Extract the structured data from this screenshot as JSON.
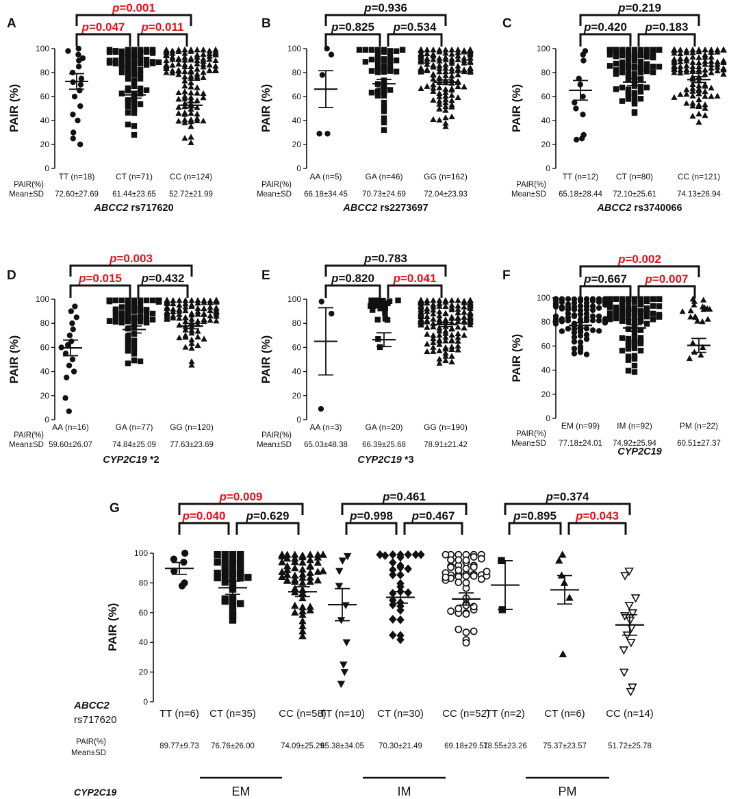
{
  "chart_data": [
    {
      "type": "scatter",
      "panel": "A",
      "ylabel": "PAIR (%)",
      "ylim": [
        0,
        100
      ],
      "yticks": [
        0,
        20,
        40,
        60,
        80,
        100
      ],
      "categories": [
        "TT (n=18)",
        "CT (n=71)",
        "CC (n=124)"
      ],
      "markers": [
        "circle",
        "square",
        "triangle"
      ],
      "stat_row_label": [
        "PAIR(%)",
        "Mean±SD"
      ],
      "stats": [
        "72.60±27.69",
        "61.44±23.65",
        "52.72±21.99"
      ],
      "means": [
        72.6,
        61.44,
        52.72
      ],
      "sems": [
        6.5,
        2.8,
        2.0
      ],
      "gene": "ABCC2",
      "variant": " rs717620",
      "comparisons": [
        {
          "from": 0,
          "to": 1,
          "p": "=0.047",
          "significant": true
        },
        {
          "from": 1,
          "to": 2,
          "p": "=0.011",
          "significant": true
        },
        {
          "from": 0,
          "to": 2,
          "p": "=0.001",
          "significant": true
        }
      ],
      "points": [
        [
          100,
          98,
          95,
          92,
          90,
          85,
          80,
          75,
          72,
          70,
          65,
          60,
          52,
          45,
          40,
          30,
          25,
          20
        ],
        [],
        []
      ]
    },
    {
      "type": "scatter",
      "panel": "B",
      "ylabel": "PAIR (%)",
      "ylim": [
        0,
        100
      ],
      "yticks": [
        0,
        20,
        40,
        60,
        80,
        100
      ],
      "categories": [
        "AA (n=5)",
        "GA (n=46)",
        "GG (n=162)"
      ],
      "markers": [
        "circle",
        "square",
        "triangle"
      ],
      "stat_row_label": [
        "PAIR(%)",
        "Mean±SD"
      ],
      "stats": [
        "66.18±34.45",
        "70.73±24.69",
        "72.04±23.93"
      ],
      "means": [
        66.18,
        70.73,
        72.04
      ],
      "sems": [
        15.4,
        3.6,
        1.9
      ],
      "gene": "ABCC2",
      "variant": " rs2273697",
      "comparisons": [
        {
          "from": 0,
          "to": 1,
          "p": "=0.825",
          "significant": false
        },
        {
          "from": 1,
          "to": 2,
          "p": "=0.534",
          "significant": false
        },
        {
          "from": 0,
          "to": 2,
          "p": "=0.936",
          "significant": false
        }
      ],
      "points": [
        [
          100,
          95,
          78,
          29,
          29
        ],
        [],
        []
      ]
    },
    {
      "type": "scatter",
      "panel": "C",
      "ylabel": "PAIR (%)",
      "ylim": [
        0,
        100
      ],
      "yticks": [
        0,
        20,
        40,
        60,
        80,
        100
      ],
      "categories": [
        "TT (n=12)",
        "CT (n=80)",
        "CC (n=121)"
      ],
      "markers": [
        "circle",
        "square",
        "triangle"
      ],
      "stat_row_label": [
        "PAIR(%)",
        "Mean±SD"
      ],
      "stats": [
        "65.18±28.44",
        "72.10±25.61",
        "74.13±26.94"
      ],
      "means": [
        65.18,
        72.1,
        74.13
      ],
      "sems": [
        8.2,
        2.9,
        2.4
      ],
      "gene": "ABCC2",
      "variant": " rs3740066",
      "comparisons": [
        {
          "from": 0,
          "to": 1,
          "p": "=0.420",
          "significant": false
        },
        {
          "from": 1,
          "to": 2,
          "p": "=0.183",
          "significant": false
        },
        {
          "from": 0,
          "to": 2,
          "p": "=0.219",
          "significant": false
        }
      ],
      "points": [
        [
          98,
          95,
          90,
          75,
          70,
          60,
          55,
          50,
          45,
          28,
          25,
          24
        ],
        [],
        []
      ]
    },
    {
      "type": "scatter",
      "panel": "D",
      "ylabel": "PAIR (%)",
      "ylim": [
        0,
        100
      ],
      "yticks": [
        0,
        20,
        40,
        60,
        80,
        100
      ],
      "categories": [
        "AA (n=16)",
        "GA (n=77)",
        "GG (n=120)"
      ],
      "markers": [
        "circle",
        "square",
        "triangle"
      ],
      "stat_row_label": [
        "PAIR(%)",
        "Mean±SD"
      ],
      "stats": [
        "59.60±26.07",
        "74.84±25.09",
        "77.63±23.69"
      ],
      "means": [
        59.6,
        74.84,
        77.63
      ],
      "sems": [
        6.5,
        2.9,
        2.2
      ],
      "gene": "CYP2C19",
      "variant": " *2",
      "comparisons": [
        {
          "from": 0,
          "to": 1,
          "p": "=0.015",
          "significant": true
        },
        {
          "from": 1,
          "to": 2,
          "p": "=0.432",
          "significant": false
        },
        {
          "from": 0,
          "to": 2,
          "p": "=0.003",
          "significant": true
        }
      ],
      "points": [
        [
          94,
          90,
          85,
          80,
          75,
          70,
          65,
          62,
          60,
          55,
          50,
          45,
          40,
          35,
          18,
          7
        ],
        [],
        []
      ]
    },
    {
      "type": "scatter",
      "panel": "E",
      "ylabel": "PAIR (%)",
      "ylim": [
        0,
        100
      ],
      "yticks": [
        0,
        20,
        40,
        60,
        80,
        100
      ],
      "categories": [
        "AA (n=3)",
        "GA (n=20)",
        "GG (n=190)"
      ],
      "markers": [
        "circle",
        "square",
        "triangle"
      ],
      "stat_row_label": [
        "PAIR(%)",
        "Mean±SD"
      ],
      "stats": [
        "65.03±48.38",
        "66.39±25.68",
        "78.91±21.42"
      ],
      "means": [
        65.03,
        66.39,
        78.91
      ],
      "sems": [
        27.9,
        5.7,
        1.6
      ],
      "gene": "CYP2C19",
      "variant": " *3",
      "comparisons": [
        {
          "from": 0,
          "to": 1,
          "p": "=0.820",
          "significant": false
        },
        {
          "from": 1,
          "to": 2,
          "p": "=0.041",
          "significant": true
        },
        {
          "from": 0,
          "to": 2,
          "p": "=0.783",
          "significant": false
        }
      ],
      "points": [
        [
          98,
          88,
          9
        ],
        [],
        []
      ]
    },
    {
      "type": "scatter",
      "panel": "F",
      "ylabel": "PAIR (%)",
      "ylim": [
        0,
        100
      ],
      "yticks": [
        0,
        20,
        40,
        60,
        80,
        100
      ],
      "categories": [
        "EM (n=99)",
        "IM (n=92)",
        "PM (n=22)"
      ],
      "markers": [
        "circle",
        "square",
        "triangle"
      ],
      "stat_row_label": [
        "PAIR(%)",
        "Mean±SD"
      ],
      "stats": [
        "77.18±24.01",
        "74.92±25.94",
        "60.51±27.37"
      ],
      "means": [
        77.18,
        74.92,
        60.51
      ],
      "sems": [
        2.4,
        2.7,
        5.8
      ],
      "gene": "CYP2C19",
      "variant": "",
      "comparisons": [
        {
          "from": 0,
          "to": 1,
          "p": "=0.667",
          "significant": false
        },
        {
          "from": 1,
          "to": 2,
          "p": "=0.007",
          "significant": true
        },
        {
          "from": 0,
          "to": 2,
          "p": "=0.002",
          "significant": true
        }
      ],
      "points": [
        [],
        [],
        []
      ]
    },
    {
      "type": "scatter",
      "panel": "G",
      "ylabel": "PAIR (%)",
      "ylim": [
        0,
        100
      ],
      "yticks": [
        0,
        20,
        40,
        60,
        80,
        100
      ],
      "row_label_gene": "ABCC2",
      "row_label_variant": "rs717620",
      "stat_row_label": [
        "PAIR(%)",
        "Mean±SD"
      ],
      "bottom_label": "CYP2C19",
      "categories": [
        "TT (n=6)",
        "CT (n=35)",
        "CC (n=58)",
        "TT (n=10)",
        "CT (n=30)",
        "CC (n=52)",
        "TT (n=2)",
        "CT (n=6)",
        "CC (n=14)"
      ],
      "markers": [
        "circle",
        "square",
        "triangle",
        "triangle-down",
        "diamond",
        "open-circle",
        "square",
        "triangle",
        "open-triangle-down"
      ],
      "stats": [
        "89.77±9.73",
        "76.76±26.00",
        "74.09±25.29",
        "65.38±34.05",
        "70.30±21.49",
        "69.18±29.51",
        "78.55±23.26",
        "75.37±23.57",
        "51.72±25.78"
      ],
      "means": [
        89.77,
        76.76,
        74.09,
        65.38,
        70.3,
        69.18,
        78.55,
        75.37,
        51.72
      ],
      "sems": [
        4.0,
        4.4,
        3.3,
        10.8,
        3.9,
        4.1,
        16.4,
        9.6,
        6.9
      ],
      "groups": [
        {
          "label": "EM",
          "from": 0,
          "to": 2
        },
        {
          "label": "IM",
          "from": 3,
          "to": 5
        },
        {
          "label": "PM",
          "from": 6,
          "to": 8
        }
      ],
      "comparisons": [
        {
          "from": 0,
          "to": 1,
          "p": "=0.040",
          "significant": true
        },
        {
          "from": 1,
          "to": 2,
          "p": "=0.629",
          "significant": false
        },
        {
          "from": 0,
          "to": 2,
          "p": "=0.009",
          "significant": true
        },
        {
          "from": 3,
          "to": 4,
          "p": "=0.998",
          "significant": false
        },
        {
          "from": 4,
          "to": 5,
          "p": "=0.467",
          "significant": false
        },
        {
          "from": 3,
          "to": 5,
          "p": "=0.461",
          "significant": false
        },
        {
          "from": 6,
          "to": 7,
          "p": "=0.895",
          "significant": false
        },
        {
          "from": 7,
          "to": 8,
          "p": "=0.043",
          "significant": true
        },
        {
          "from": 6,
          "to": 8,
          "p": "=0.374",
          "significant": false
        }
      ],
      "points": [
        [
          100,
          96,
          94,
          88,
          80,
          78
        ],
        [],
        [],
        [
          98,
          95,
          88,
          78,
          65,
          55,
          40,
          25,
          20,
          12
        ],
        [],
        [],
        [
          95,
          62
        ],
        [
          99,
          95,
          85,
          80,
          70,
          32
        ],
        [
          88,
          85,
          70,
          65,
          60,
          58,
          55,
          50,
          45,
          40,
          35,
          20,
          10,
          7
        ]
      ]
    }
  ]
}
